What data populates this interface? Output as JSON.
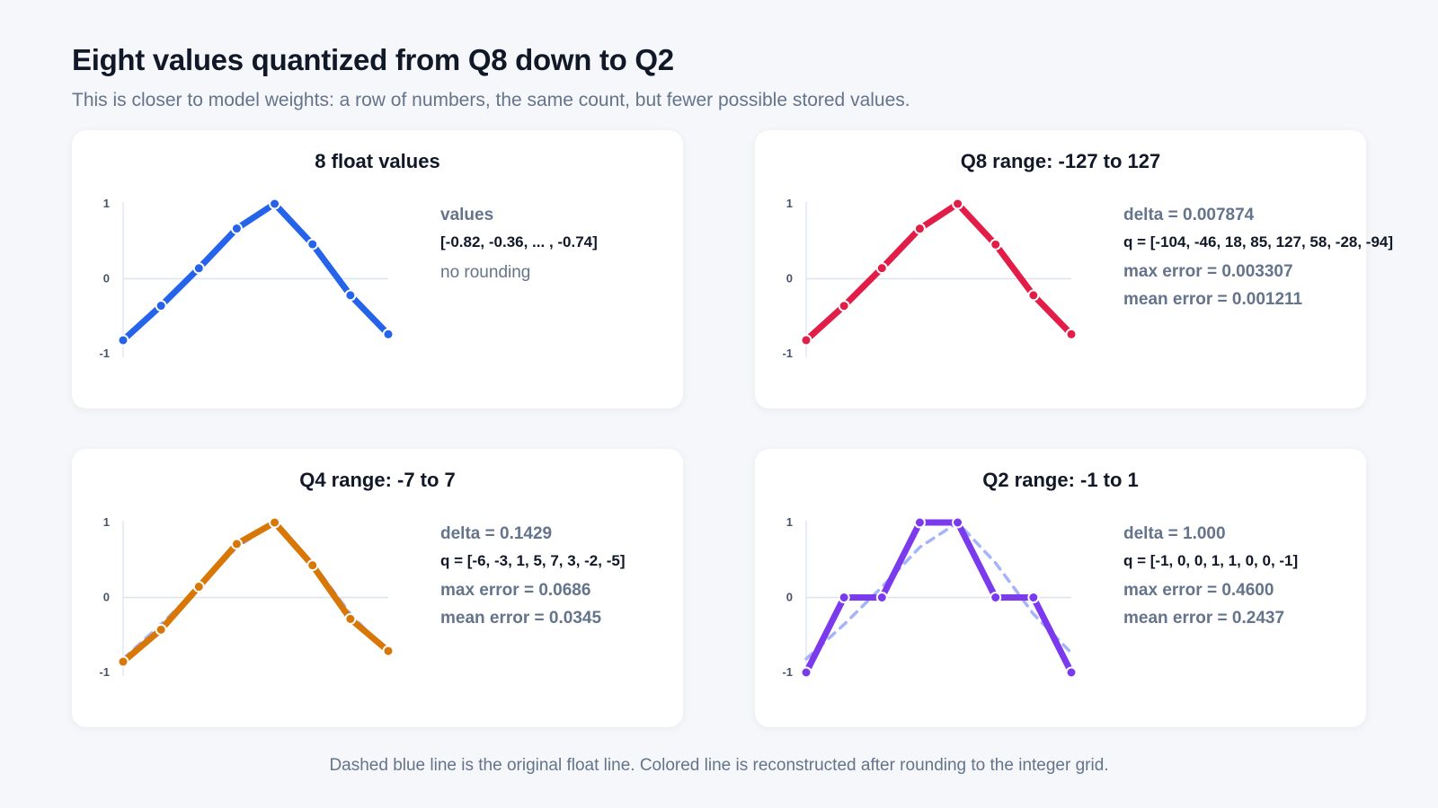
{
  "title": "Eight values quantized from Q8 down to Q2",
  "subtitle": "This is closer to model weights: a row of numbers, the same count, but fewer possible stored values.",
  "footer": "Dashed blue line is the original float line. Colored line is reconstructed after rounding to the integer grid.",
  "colors": {
    "original": "#2563eb",
    "q8": "#e11d48",
    "q4": "#d97706",
    "q2": "#7c3aed",
    "dashed_original": "#a5b4fc"
  },
  "panels": [
    {
      "title": "8 float values",
      "label": "values",
      "values_text": "[-0.82, -0.36, ... , -0.74]",
      "note": "no rounding"
    },
    {
      "title": "Q8 range: -127 to 127",
      "delta": "delta = 0.007874",
      "q": "q = [-104, -46, 18, 85, 127, 58, -28, -94]",
      "max_error": "max error = 0.003307",
      "mean_error": "mean error = 0.001211"
    },
    {
      "title": "Q4 range: -7 to 7",
      "delta": "delta = 0.1429",
      "q": "q = [-6, -3, 1, 5, 7, 3, -2, -5]",
      "max_error": "max error = 0.0686",
      "mean_error": "mean error = 0.0345"
    },
    {
      "title": "Q2 range: -1 to 1",
      "delta": "delta = 1.000",
      "q": "q = [-1, 0, 0, 1, 1, 0, 0, -1]",
      "max_error": "max error = 0.4600",
      "mean_error": "mean error = 0.2437"
    }
  ],
  "chart_data": [
    {
      "type": "line",
      "title": "8 float values",
      "x": [
        1,
        2,
        3,
        4,
        5,
        6,
        7,
        8
      ],
      "ylim": [
        -1,
        1
      ],
      "yticks": [
        "1",
        "0",
        "-1"
      ],
      "series": [
        {
          "values": [
            -0.82,
            -0.36,
            0.14,
            0.67,
            1.0,
            0.46,
            -0.22,
            -0.74
          ],
          "color": "#2563eb"
        }
      ]
    },
    {
      "type": "line",
      "title": "Q8 range: -127 to 127",
      "x": [
        1,
        2,
        3,
        4,
        5,
        6,
        7,
        8
      ],
      "ylim": [
        -1,
        1
      ],
      "yticks": [
        "1",
        "0",
        "-1"
      ],
      "series": [
        {
          "values": [
            -0.82,
            -0.36,
            0.14,
            0.67,
            1.0,
            0.46,
            -0.22,
            -0.74
          ],
          "style": "dashed",
          "color": "#a5b4fc"
        },
        {
          "values": [
            -0.819,
            -0.362,
            0.142,
            0.669,
            1.0,
            0.457,
            -0.22,
            -0.74
          ],
          "color": "#e11d48"
        }
      ]
    },
    {
      "type": "line",
      "title": "Q4 range: -7 to 7",
      "x": [
        1,
        2,
        3,
        4,
        5,
        6,
        7,
        8
      ],
      "ylim": [
        -1,
        1
      ],
      "yticks": [
        "1",
        "0",
        "-1"
      ],
      "series": [
        {
          "values": [
            -0.82,
            -0.36,
            0.14,
            0.67,
            1.0,
            0.46,
            -0.22,
            -0.74
          ],
          "style": "dashed",
          "color": "#a5b4fc"
        },
        {
          "values": [
            -0.857,
            -0.429,
            0.143,
            0.714,
            1.0,
            0.429,
            -0.286,
            -0.714
          ],
          "color": "#d97706"
        }
      ]
    },
    {
      "type": "line",
      "title": "Q2 range: -1 to 1",
      "x": [
        1,
        2,
        3,
        4,
        5,
        6,
        7,
        8
      ],
      "ylim": [
        -1,
        1
      ],
      "yticks": [
        "1",
        "0",
        "-1"
      ],
      "series": [
        {
          "values": [
            -0.82,
            -0.36,
            0.14,
            0.67,
            1.0,
            0.46,
            -0.22,
            -0.74
          ],
          "style": "dashed",
          "color": "#a5b4fc"
        },
        {
          "values": [
            -1,
            0,
            0,
            1,
            1,
            0,
            0,
            -1
          ],
          "color": "#7c3aed"
        }
      ]
    }
  ]
}
